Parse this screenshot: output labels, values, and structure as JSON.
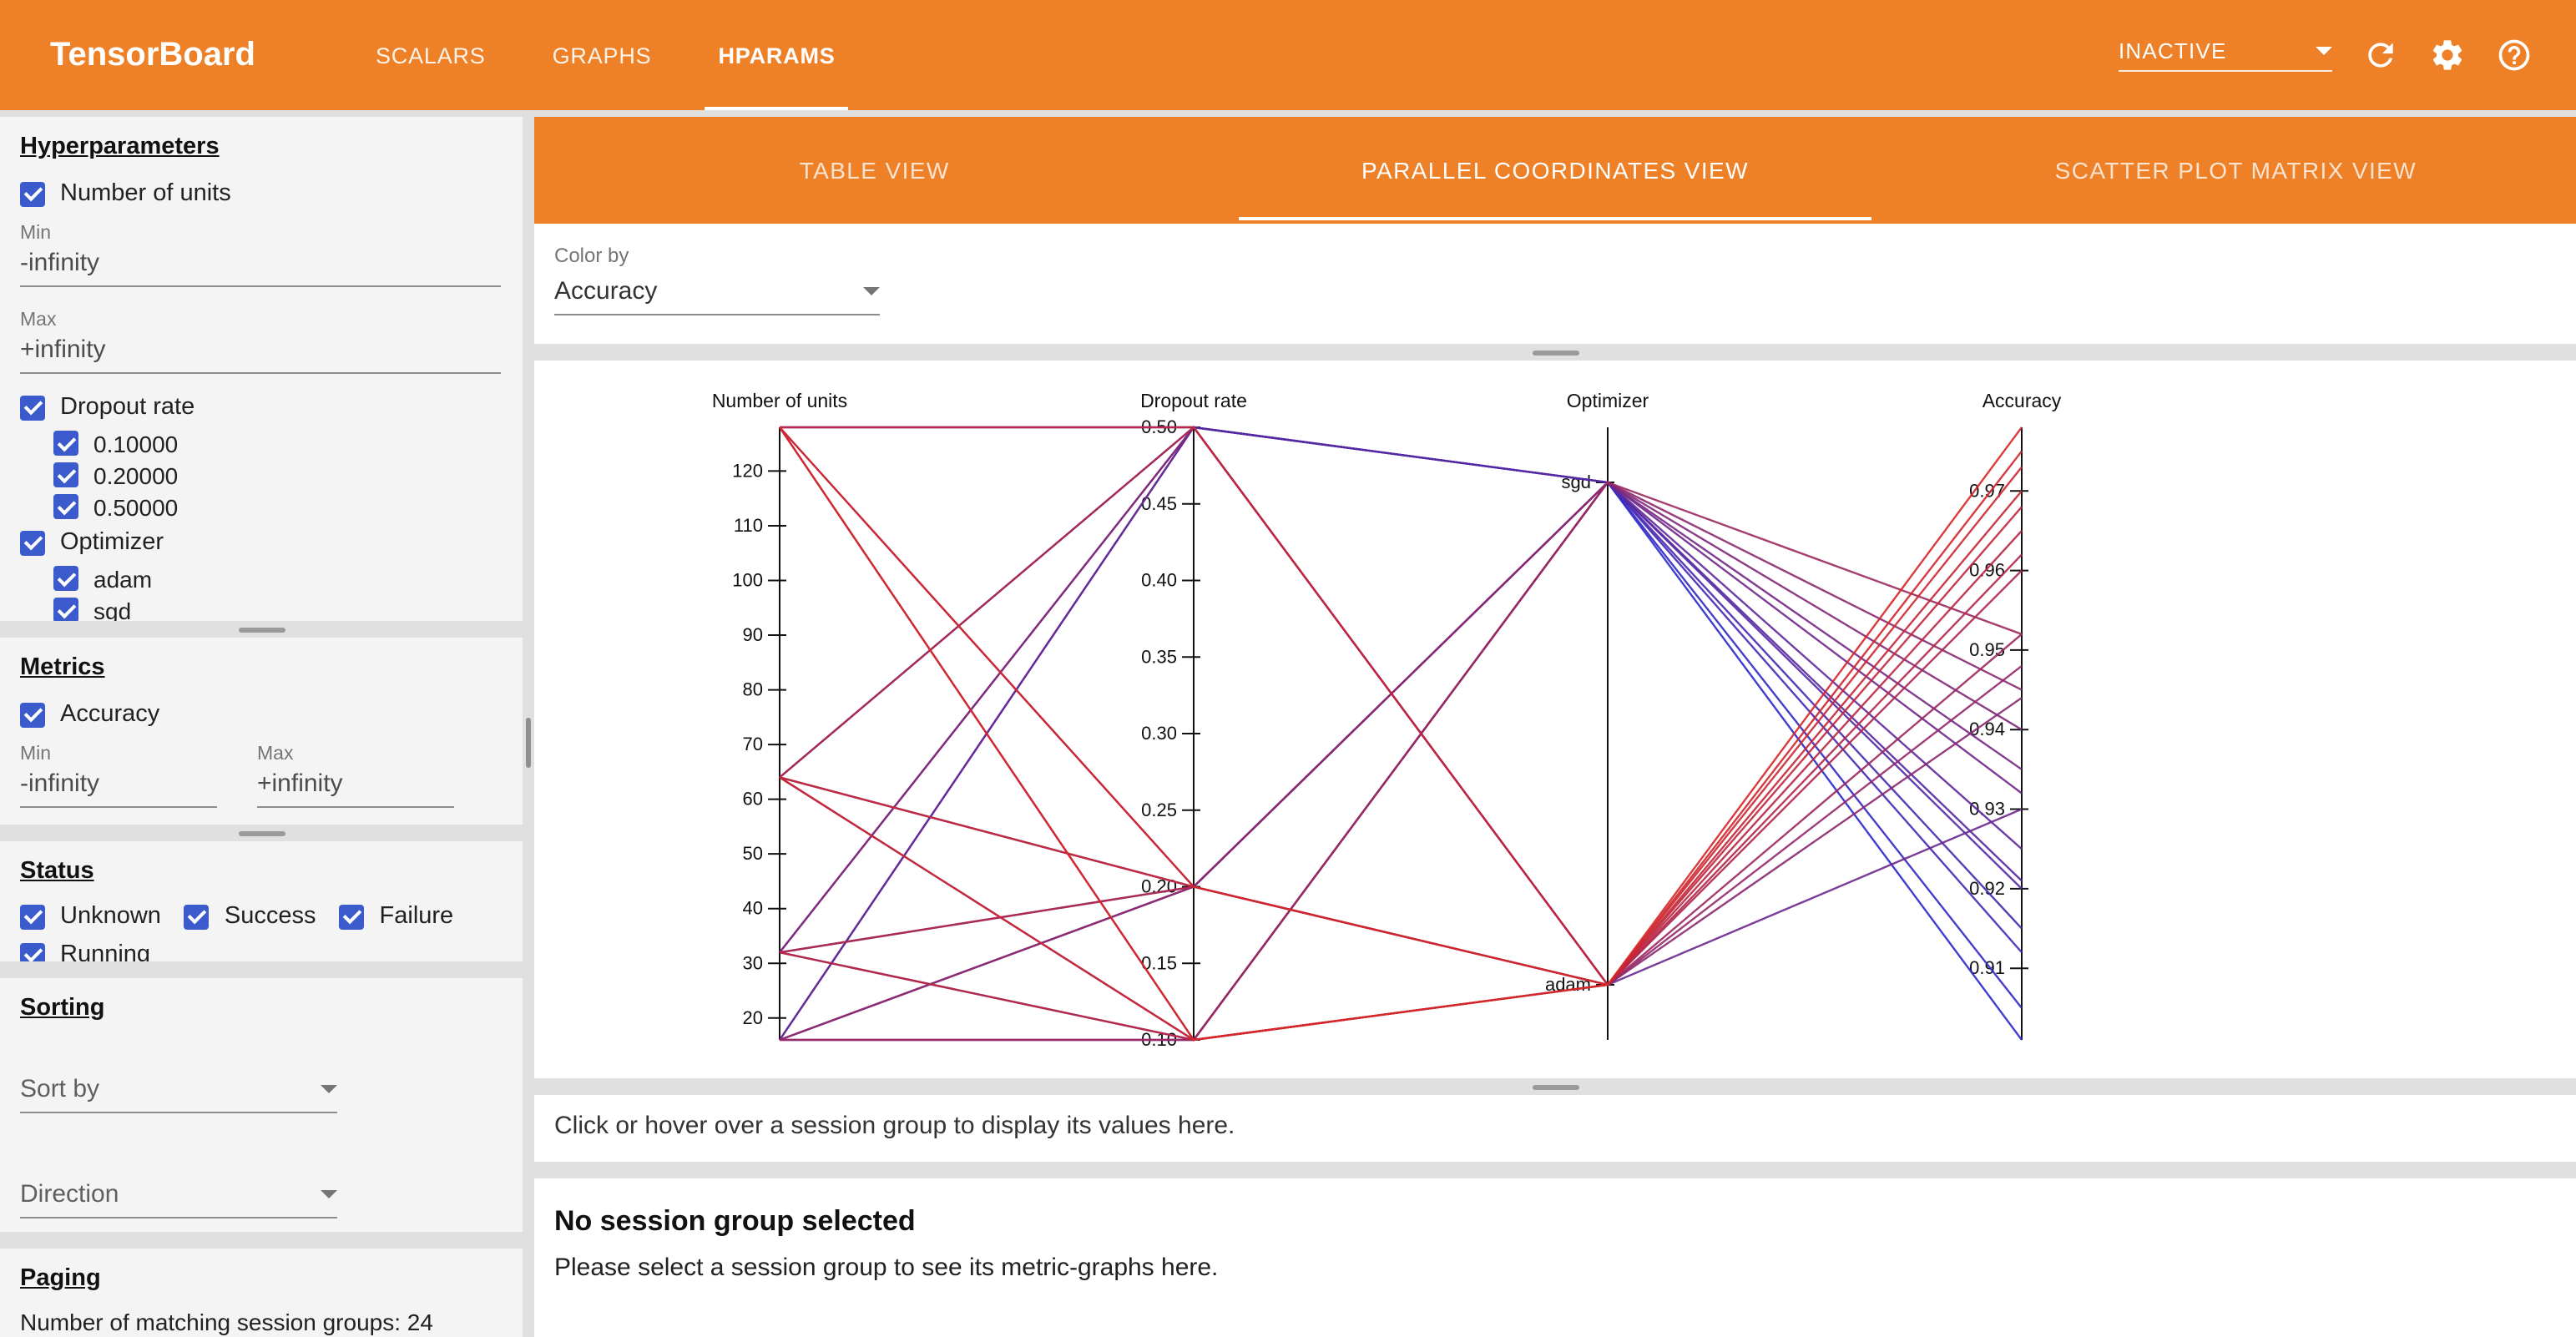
{
  "header": {
    "logo": "TensorBoard",
    "nav_tabs": [
      {
        "label": "SCALARS"
      },
      {
        "label": "GRAPHS"
      },
      {
        "label": "HPARAMS"
      }
    ],
    "active_nav_tab": "HPARAMS",
    "status_selector": "INACTIVE"
  },
  "sidebar": {
    "hyperparameters": {
      "title": "Hyperparameters",
      "number_of_units_label": "Number of units",
      "min_label": "Min",
      "min_value": "-infinity",
      "max_label": "Max",
      "max_value": "+infinity",
      "dropout_label": "Dropout rate",
      "dropout_options": [
        {
          "label": "0.10000"
        },
        {
          "label": "0.20000"
        },
        {
          "label": "0.50000"
        }
      ],
      "optimizer_label": "Optimizer",
      "optimizer_options": [
        {
          "label": "adam"
        },
        {
          "label": "sgd"
        }
      ]
    },
    "metrics": {
      "title": "Metrics",
      "accuracy_label": "Accuracy",
      "min_label": "Min",
      "min_value": "-infinity",
      "max_label": "Max",
      "max_value": "+infinity"
    },
    "status": {
      "title": "Status",
      "options": [
        {
          "label": "Unknown"
        },
        {
          "label": "Success"
        },
        {
          "label": "Failure"
        },
        {
          "label": "Running"
        }
      ]
    },
    "sorting": {
      "title": "Sorting",
      "sort_by_placeholder": "Sort by",
      "direction_placeholder": "Direction"
    },
    "paging": {
      "title": "Paging",
      "matching_text": "Number of matching session groups: 24"
    }
  },
  "main": {
    "view_tabs": [
      {
        "label": "TABLE VIEW"
      },
      {
        "label": "PARALLEL COORDINATES VIEW"
      },
      {
        "label": "SCATTER PLOT MATRIX VIEW"
      }
    ],
    "active_view_tab": "PARALLEL COORDINATES VIEW",
    "color_by": {
      "label": "Color by",
      "value": "Accuracy"
    },
    "session_hint": "Click or hover over a session group to display its values here.",
    "no_session": {
      "title": "No session group selected",
      "subtitle": "Please select a session group to see its metric-graphs here."
    }
  },
  "chart_data": {
    "type": "parallel_coordinates",
    "color_by": "Accuracy",
    "color_key": "accuracy",
    "color_range": [
      "#2929cc",
      "#d62728"
    ],
    "axes": [
      {
        "name": "Number of units",
        "key": "units",
        "type": "linear",
        "domain": [
          16,
          128
        ],
        "ticks": [
          20,
          30,
          40,
          50,
          60,
          70,
          80,
          90,
          100,
          110,
          120
        ]
      },
      {
        "name": "Dropout rate",
        "key": "dropout",
        "type": "linear",
        "domain": [
          0.1,
          0.5
        ],
        "ticks": [
          0.1,
          0.15,
          0.2,
          0.25,
          0.3,
          0.35,
          0.4,
          0.45,
          0.5
        ],
        "tick_decimals": 2
      },
      {
        "name": "Optimizer",
        "key": "optimizer",
        "type": "categorical",
        "categories": [
          "adam",
          "sgd"
        ]
      },
      {
        "name": "Accuracy",
        "key": "accuracy",
        "type": "linear",
        "domain": [
          0.901,
          0.978
        ],
        "ticks": [
          0.91,
          0.92,
          0.93,
          0.94,
          0.95,
          0.96,
          0.97
        ],
        "tick_decimals": 2
      }
    ],
    "sessions": [
      {
        "units": 16,
        "dropout": 0.1,
        "optimizer": "adam",
        "accuracy": 0.952
      },
      {
        "units": 16,
        "dropout": 0.1,
        "optimizer": "sgd",
        "accuracy": 0.92
      },
      {
        "units": 16,
        "dropout": 0.2,
        "optimizer": "adam",
        "accuracy": 0.948
      },
      {
        "units": 16,
        "dropout": 0.2,
        "optimizer": "sgd",
        "accuracy": 0.912
      },
      {
        "units": 16,
        "dropout": 0.5,
        "optimizer": "adam",
        "accuracy": 0.93
      },
      {
        "units": 16,
        "dropout": 0.5,
        "optimizer": "sgd",
        "accuracy": 0.901
      },
      {
        "units": 32,
        "dropout": 0.1,
        "optimizer": "adam",
        "accuracy": 0.965
      },
      {
        "units": 32,
        "dropout": 0.1,
        "optimizer": "sgd",
        "accuracy": 0.932
      },
      {
        "units": 32,
        "dropout": 0.2,
        "optimizer": "adam",
        "accuracy": 0.962
      },
      {
        "units": 32,
        "dropout": 0.2,
        "optimizer": "sgd",
        "accuracy": 0.925
      },
      {
        "units": 32,
        "dropout": 0.5,
        "optimizer": "adam",
        "accuracy": 0.944
      },
      {
        "units": 32,
        "dropout": 0.5,
        "optimizer": "sgd",
        "accuracy": 0.905
      },
      {
        "units": 64,
        "dropout": 0.1,
        "optimizer": "adam",
        "accuracy": 0.973
      },
      {
        "units": 64,
        "dropout": 0.1,
        "optimizer": "sgd",
        "accuracy": 0.94
      },
      {
        "units": 64,
        "dropout": 0.2,
        "optimizer": "adam",
        "accuracy": 0.97
      },
      {
        "units": 64,
        "dropout": 0.2,
        "optimizer": "sgd",
        "accuracy": 0.935
      },
      {
        "units": 64,
        "dropout": 0.5,
        "optimizer": "adam",
        "accuracy": 0.96
      },
      {
        "units": 64,
        "dropout": 0.5,
        "optimizer": "sgd",
        "accuracy": 0.915
      },
      {
        "units": 128,
        "dropout": 0.1,
        "optimizer": "adam",
        "accuracy": 0.978
      },
      {
        "units": 128,
        "dropout": 0.1,
        "optimizer": "sgd",
        "accuracy": 0.952
      },
      {
        "units": 128,
        "dropout": 0.2,
        "optimizer": "adam",
        "accuracy": 0.975
      },
      {
        "units": 128,
        "dropout": 0.2,
        "optimizer": "sgd",
        "accuracy": 0.945
      },
      {
        "units": 128,
        "dropout": 0.5,
        "optimizer": "adam",
        "accuracy": 0.968
      },
      {
        "units": 128,
        "dropout": 0.5,
        "optimizer": "sgd",
        "accuracy": 0.921
      }
    ]
  }
}
